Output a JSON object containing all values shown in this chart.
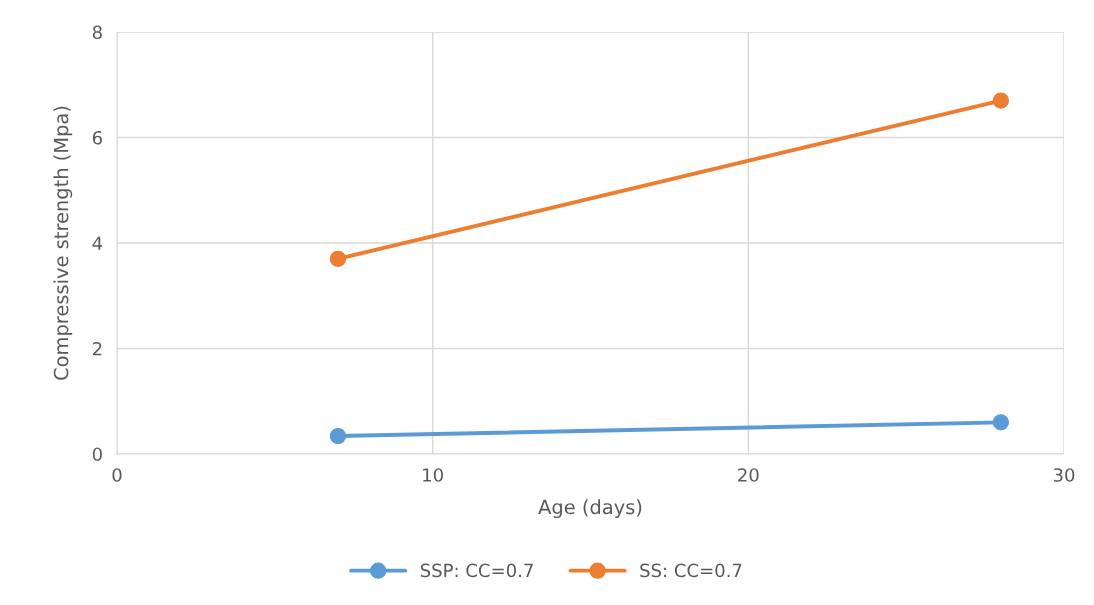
{
  "chart_data": {
    "type": "line",
    "xlabel": "Age (days)",
    "ylabel": "Compressive strength (Mpa)",
    "x": [
      7,
      28
    ],
    "series": [
      {
        "name": "SSP: CC=0.7",
        "color": "#5b9bd5",
        "values": [
          0.34,
          0.6
        ]
      },
      {
        "name": "SS: CC=0.7",
        "color": "#ed7d31",
        "values": [
          3.7,
          6.7
        ]
      }
    ],
    "xlim": [
      0,
      30
    ],
    "xticks": [
      0,
      10,
      20,
      30
    ],
    "ylim": [
      0,
      8
    ],
    "yticks": [
      0,
      2,
      4,
      6,
      8
    ],
    "grid": true,
    "legend": "bottom",
    "marker": "circle",
    "line_style": "solid"
  }
}
